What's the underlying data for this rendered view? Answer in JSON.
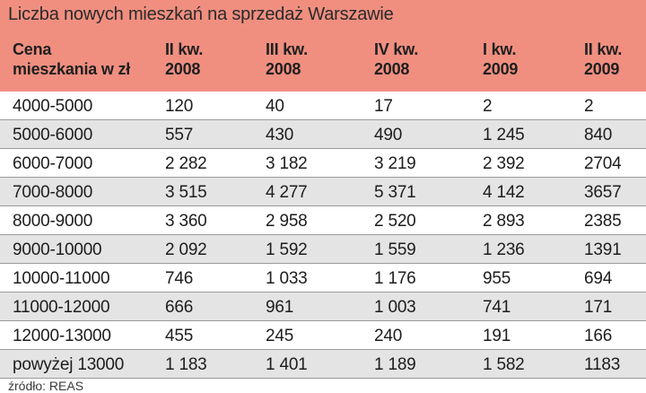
{
  "chart_data": {
    "type": "table",
    "title": "Liczba nowych mieszkań na sprzedaż Warszawie",
    "columns": [
      "Cena\nmieszkania w zł",
      "II kw.\n2008",
      "III kw.\n2008",
      "IV kw.\n2008",
      "I kw.\n2009",
      "II kw.\n2009"
    ],
    "rows": [
      [
        "4000-5000",
        "120",
        "40",
        "17",
        "2",
        "2"
      ],
      [
        "5000-6000",
        "557",
        "430",
        "490",
        "1 245",
        "840"
      ],
      [
        "6000-7000",
        "2 282",
        "3 182",
        "3 219",
        "2 392",
        "2704"
      ],
      [
        "7000-8000",
        "3 515",
        "4 277",
        "5 371",
        "4 142",
        "3657"
      ],
      [
        "8000-9000",
        "3 360",
        "2 958",
        "2 520",
        "2 893",
        "2385"
      ],
      [
        "9000-10000",
        "2 092",
        "1 592",
        "1 559",
        "1 236",
        "1391"
      ],
      [
        "10000-11000",
        "746",
        "1 033",
        "1 176",
        "955",
        "694"
      ],
      [
        "11000-12000",
        "666",
        "961",
        "1 003",
        "741",
        "171"
      ],
      [
        "12000-13000",
        "455",
        "245",
        "240",
        "191",
        "166"
      ],
      [
        "powyżej 13000",
        "1 183",
        "1 401",
        "1 189",
        "1 582",
        "1183"
      ]
    ],
    "source": "źródło: REAS"
  },
  "colors": {
    "header_background": "#f08f80",
    "shaded_row": "#e4e4e4",
    "row_line": "#9a9a9a"
  }
}
